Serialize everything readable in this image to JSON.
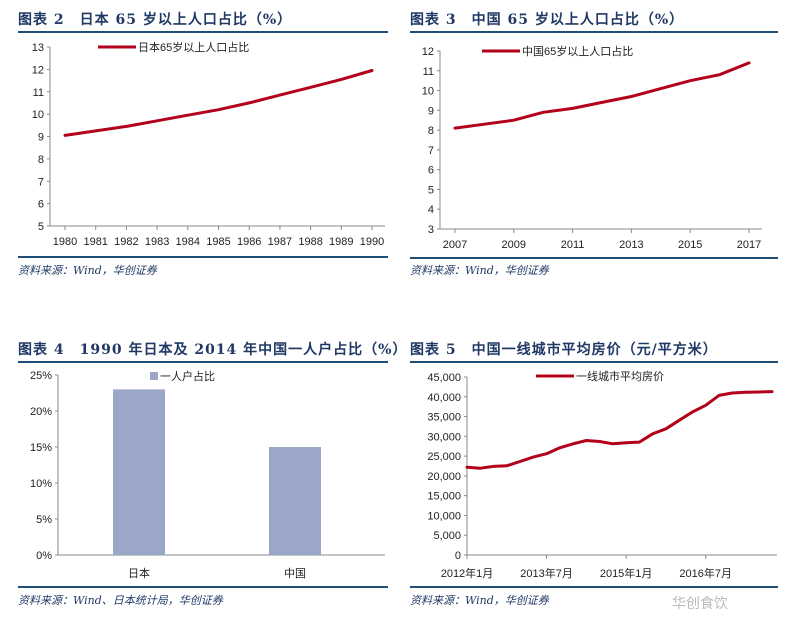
{
  "chart_data": [
    {
      "type": "line",
      "title": "图表 2　日本 65 岁以上人口占比（%）",
      "source": "资料来源：Wind，华创证券",
      "x": [
        "1980",
        "1981",
        "1982",
        "1983",
        "1984",
        "1985",
        "1986",
        "1987",
        "1988",
        "1989",
        "1990"
      ],
      "series": [
        {
          "name": "日本65岁以上人口占比",
          "values": [
            9.05,
            9.25,
            9.45,
            9.7,
            9.95,
            10.2,
            10.5,
            10.85,
            11.2,
            11.55,
            11.95
          ]
        }
      ],
      "ylim": [
        5,
        13
      ],
      "yticks": [
        "5",
        "6",
        "7",
        "8",
        "9",
        "10",
        "11",
        "12",
        "13"
      ],
      "color": "#b3001b",
      "legend": "top"
    },
    {
      "type": "line",
      "title": "图表 3　中国 65 岁以上人口占比（%）",
      "source": "资料来源：Wind，华创证券",
      "x": [
        "2007",
        "2008",
        "2009",
        "2010",
        "2011",
        "2012",
        "2013",
        "2014",
        "2015",
        "2016",
        "2017"
      ],
      "xticks": [
        "2007",
        "2009",
        "2011",
        "2013",
        "2015",
        "2017"
      ],
      "series": [
        {
          "name": "中国65岁以上人口占比",
          "values": [
            8.1,
            8.3,
            8.5,
            8.9,
            9.1,
            9.4,
            9.7,
            10.1,
            10.5,
            10.8,
            11.4
          ]
        }
      ],
      "ylim": [
        3,
        12
      ],
      "yticks": [
        "3",
        "4",
        "5",
        "6",
        "7",
        "8",
        "9",
        "10",
        "11",
        "12"
      ],
      "color": "#b3001b",
      "legend": "top"
    },
    {
      "type": "bar",
      "title": "图表 4　1990 年日本及 2014 年中国一人户占比（%）",
      "source": "资料来源：Wind、日本统计局，华创证券",
      "categories": [
        "日本",
        "中国"
      ],
      "series": [
        {
          "name": "一人户占比",
          "values": [
            23,
            15
          ]
        }
      ],
      "ylim": [
        0,
        25
      ],
      "yticks": [
        "0%",
        "5%",
        "10%",
        "15%",
        "20%",
        "25%"
      ],
      "color": "#9ba7c8",
      "legend": "top"
    },
    {
      "type": "line",
      "title": "图表 5　中国一线城市平均房价（元/平方米）",
      "source": "资料来源：Wind，华创证券",
      "x": [
        "2012-01",
        "2012-04",
        "2012-07",
        "2012-10",
        "2013-01",
        "2013-04",
        "2013-07",
        "2013-10",
        "2014-01",
        "2014-04",
        "2014-07",
        "2014-10",
        "2015-01",
        "2015-04",
        "2015-07",
        "2015-10",
        "2016-01",
        "2016-04",
        "2016-07",
        "2016-10",
        "2017-01",
        "2017-04",
        "2017-07",
        "2017-10"
      ],
      "xticks": [
        "2012年1月",
        "2013年7月",
        "2015年1月",
        "2016年7月"
      ],
      "series": [
        {
          "name": "一线城市平均房价",
          "values": [
            22200,
            21950,
            22400,
            22550,
            23650,
            24750,
            25600,
            27100,
            28100,
            28950,
            28700,
            28100,
            28400,
            28550,
            30650,
            31900,
            34050,
            36150,
            37850,
            40350,
            40950,
            41150,
            41200,
            41300
          ]
        }
      ],
      "ylim": [
        0,
        45000
      ],
      "yticks": [
        "0",
        "5,000",
        "10,000",
        "15,000",
        "20,000",
        "25,000",
        "30,000",
        "35,000",
        "40,000",
        "45,000"
      ],
      "color": "#b3001b",
      "legend": "top"
    }
  ],
  "watermark": "华创食饮"
}
